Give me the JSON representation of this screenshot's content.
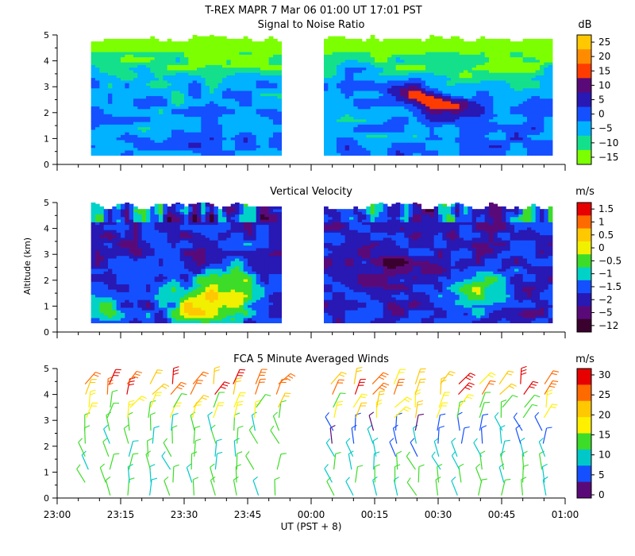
{
  "header": {
    "line1": "T-REX   MAPR   7 Mar 06   01:00 UT   17:01   PST"
  },
  "xaxis": {
    "label": "UT  (PST + 8)",
    "tick_labels": [
      "23:00",
      "23:15",
      "23:30",
      "23:45",
      "00:00",
      "00:15",
      "00:30",
      "00:45",
      "01:00"
    ]
  },
  "shared_ylabel": "Altitude (km)",
  "colors": {
    "scale": [
      "#3a002e",
      "#5a0a78",
      "#2818b4",
      "#1450ff",
      "#00b2ff",
      "#00d8ff",
      "#14e08c",
      "#3cdc28",
      "#7cff00",
      "#d8f000",
      "#fff000",
      "#ffc800",
      "#ff8c00",
      "#ff4a00",
      "#e60000"
    ]
  },
  "chart_data": [
    {
      "type": "heatmap",
      "title": "Signal to Noise Ratio",
      "units": "dB",
      "ylim": [
        0,
        5
      ],
      "yticks": [
        0,
        1,
        2,
        3,
        4,
        5
      ],
      "xrange_minutes": [
        0,
        120
      ],
      "colorbar": {
        "labels": [
          "25",
          "20",
          "15",
          "10",
          "5",
          "0",
          "−5",
          "−10",
          "−15"
        ],
        "colors": [
          "#ffc800",
          "#ff8c00",
          "#ff3c00",
          "#5a0a78",
          "#2818b4",
          "#1450ff",
          "#00b2ff",
          "#14e08c",
          "#7cff00"
        ]
      },
      "data_gap_minutes": [
        53,
        63
      ],
      "data_altitude_range_km": [
        0.35,
        5.0
      ],
      "features": "Background mostly 0 to 5 dB below ~1.8 km, decreasing to -10..-15 dB near 4.5 km; enhanced region 15-20 dB around 2-3 km near 00:20-00:30"
    },
    {
      "type": "heatmap",
      "title": "Vertical Velocity",
      "units": "m/s",
      "ylim": [
        0,
        5
      ],
      "yticks": [
        0,
        1,
        2,
        3,
        4,
        5
      ],
      "xrange_minutes": [
        0,
        120
      ],
      "colorbar": {
        "labels": [
          "1.5",
          "1",
          "0.5",
          "0",
          "−0.5",
          "−1",
          "−1.5",
          "−2",
          "−5",
          "−12"
        ],
        "colors": [
          "#e60000",
          "#ff6a00",
          "#ffc800",
          "#f0f000",
          "#3cdc28",
          "#00d2c8",
          "#1450ff",
          "#2818b4",
          "#5a0a78",
          "#3a002e"
        ]
      },
      "data_gap_minutes": [
        53,
        63
      ],
      "data_altitude_range_km": [
        0.35,
        5.0
      ],
      "features": "Mostly -1 to -2 m/s aloft; positive updrafts (0.5 to 1.5 m/s) below ~2.5 km near 23:30-23:50 and 00:30-00:45"
    },
    {
      "type": "scatter",
      "title": "FCA 5 Minute Averaged Winds",
      "units": "m/s",
      "ylim": [
        0,
        5
      ],
      "yticks": [
        0,
        1,
        2,
        3,
        4,
        5
      ],
      "xrange_minutes": [
        0,
        120
      ],
      "colorbar": {
        "labels": [
          "30",
          "25",
          "20",
          "15",
          "10",
          "5",
          "0"
        ],
        "colors": [
          "#e60000",
          "#ff6a00",
          "#ffc800",
          "#fff000",
          "#3cdc28",
          "#00c8c8",
          "#1450ff",
          "#5a0a78"
        ]
      },
      "columns_minutes": [
        7,
        12,
        17,
        22,
        27,
        32,
        37,
        42,
        47,
        52,
        65,
        70,
        75,
        80,
        85,
        90,
        95,
        100,
        105,
        110,
        115
      ],
      "levels_km": [
        0.1,
        0.6,
        1.1,
        1.6,
        2.1,
        2.6,
        3.1,
        3.5,
        4.0,
        4.4
      ],
      "speed_range_ms": [
        0,
        30
      ],
      "features": "Wind barbs; speeds ~10-15 m/s near surface, 5-10 m/s mid-levels after 00:10, 20-30 m/s near 3.5-4.5 km"
    }
  ]
}
